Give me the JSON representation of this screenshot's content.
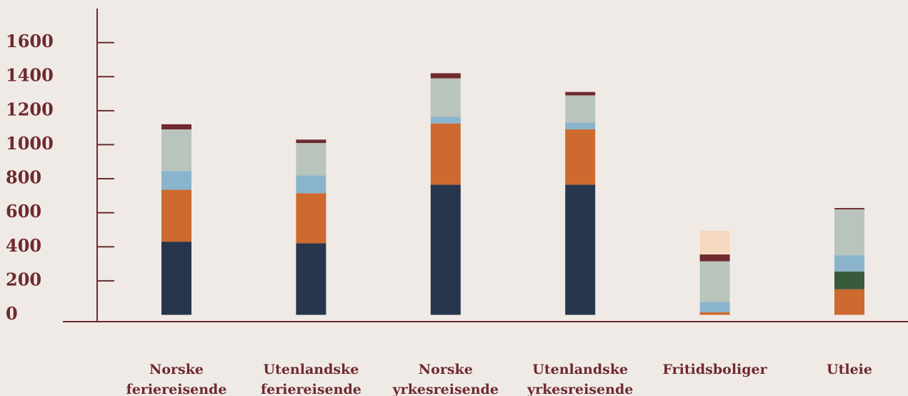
{
  "chart_data": {
    "type": "stacked-bar",
    "categories": [
      "Norske feriereisende",
      "Utenlandske feriereisende",
      "Norske yrkesreisende",
      "Utenlandske yrkesreisende",
      "Fritidsboliger",
      "Utleie"
    ],
    "series": [
      {
        "color": "#26364d",
        "values": [
          430,
          420,
          765,
          765,
          0,
          0
        ]
      },
      {
        "color": "#cc6a30",
        "values": [
          305,
          295,
          360,
          325,
          15,
          150
        ]
      },
      {
        "color": "#3a5a3c",
        "values": [
          0,
          0,
          0,
          0,
          0,
          105
        ]
      },
      {
        "color": "#8ab4cc",
        "values": [
          110,
          105,
          40,
          40,
          60,
          95
        ]
      },
      {
        "color": "#b8c4bc",
        "values": [
          245,
          190,
          225,
          160,
          240,
          270
        ]
      },
      {
        "color": "#6e2a2e",
        "values": [
          30,
          20,
          30,
          20,
          40,
          8
        ]
      },
      {
        "color": "#f5d9c0",
        "values": [
          0,
          0,
          0,
          0,
          140,
          0
        ]
      }
    ],
    "ylim": [
      -40,
      1800
    ],
    "yticks": [
      0,
      200,
      400,
      600,
      800,
      1000,
      1200,
      1400,
      1600
    ]
  }
}
